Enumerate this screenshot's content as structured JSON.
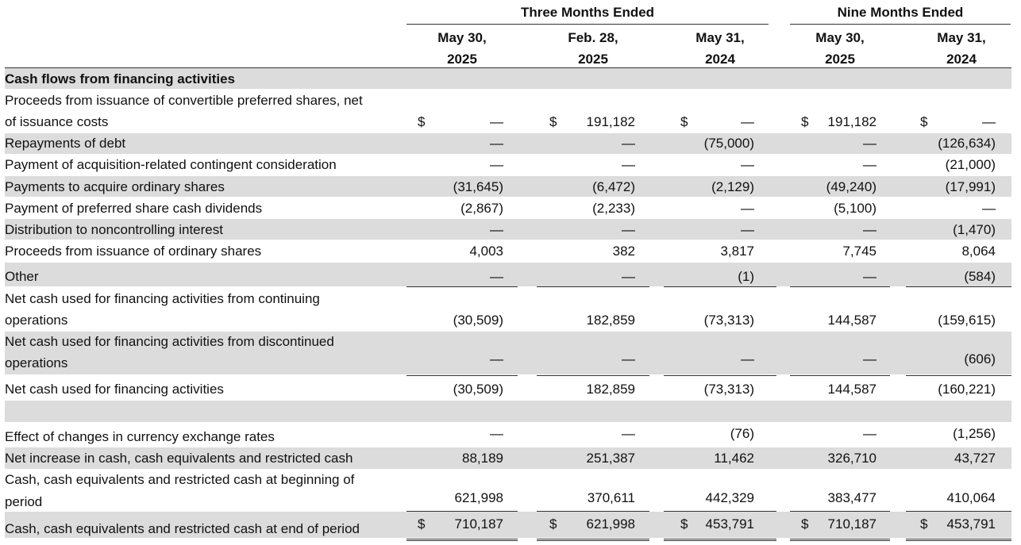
{
  "groups": [
    "Three Months Ended",
    "Nine Months Ended"
  ],
  "columns": [
    {
      "line1": "May 30,",
      "line2": "2025"
    },
    {
      "line1": "Feb. 28,",
      "line2": "2025"
    },
    {
      "line1": "May 31,",
      "line2": "2024"
    },
    {
      "line1": "May 30,",
      "line2": "2025"
    },
    {
      "line1": "May 31,",
      "line2": "2024"
    }
  ],
  "section_title": "Cash flows from financing activities",
  "rows": [
    {
      "label": "Proceeds from issuance of convertible preferred shares, net",
      "values": [
        "",
        "",
        "",
        "",
        ""
      ]
    },
    {
      "label": "of issuance costs",
      "dollar": true,
      "values": [
        "—",
        "191,182",
        "—",
        "191,182",
        "—"
      ]
    },
    {
      "label": "Repayments of debt",
      "values": [
        "—",
        "—",
        "(75,000)",
        "—",
        "(126,634)"
      ]
    },
    {
      "label": "Payment of acquisition-related contingent consideration",
      "values": [
        "—",
        "—",
        "—",
        "—",
        "(21,000)"
      ]
    },
    {
      "label": "Payments to acquire ordinary shares",
      "values": [
        "(31,645)",
        "(6,472)",
        "(2,129)",
        "(49,240)",
        "(17,991)"
      ]
    },
    {
      "label": "Payment of preferred share cash dividends",
      "values": [
        "(2,867)",
        "(2,233)",
        "—",
        "(5,100)",
        "—"
      ]
    },
    {
      "label": "Distribution to noncontrolling interest",
      "values": [
        "—",
        "—",
        "—",
        "—",
        "(1,470)"
      ]
    },
    {
      "label": "Proceeds from issuance of ordinary shares",
      "values": [
        "4,003",
        "382",
        "3,817",
        "7,745",
        "8,064"
      ]
    },
    {
      "label": "Other",
      "values": [
        "—",
        "—",
        "(1)",
        "—",
        "(584)"
      ]
    },
    {
      "label": "Net cash used for financing activities from continuing",
      "values": [
        "",
        "",
        "",
        "",
        ""
      ]
    },
    {
      "label": "operations",
      "values": [
        "(30,509)",
        "182,859",
        "(73,313)",
        "144,587",
        "(159,615)"
      ]
    },
    {
      "label": "Net cash used for financing activities from discontinued",
      "values": [
        "",
        "",
        "",
        "",
        ""
      ]
    },
    {
      "label": "operations",
      "values": [
        "—",
        "—",
        "—",
        "—",
        "(606)"
      ]
    },
    {
      "label": "Net cash used for financing activities",
      "values": [
        "(30,509)",
        "182,859",
        "(73,313)",
        "144,587",
        "(160,221)"
      ]
    },
    {
      "label": "Effect of changes in currency exchange rates",
      "values": [
        "—",
        "—",
        "(76)",
        "—",
        "(1,256)"
      ]
    },
    {
      "label": "Net increase in cash, cash equivalents and restricted cash",
      "values": [
        "88,189",
        "251,387",
        "11,462",
        "326,710",
        "43,727"
      ]
    },
    {
      "label": "Cash, cash equivalents and restricted cash at beginning of",
      "values": [
        "",
        "",
        "",
        "",
        ""
      ]
    },
    {
      "label": "period",
      "values": [
        "621,998",
        "370,611",
        "442,329",
        "383,477",
        "410,064"
      ]
    },
    {
      "label": "Cash, cash equivalents and restricted cash at end of period",
      "dollar": true,
      "values": [
        "710,187",
        "621,998",
        "453,791",
        "710,187",
        "453,791"
      ]
    }
  ],
  "currency_symbol": "$"
}
